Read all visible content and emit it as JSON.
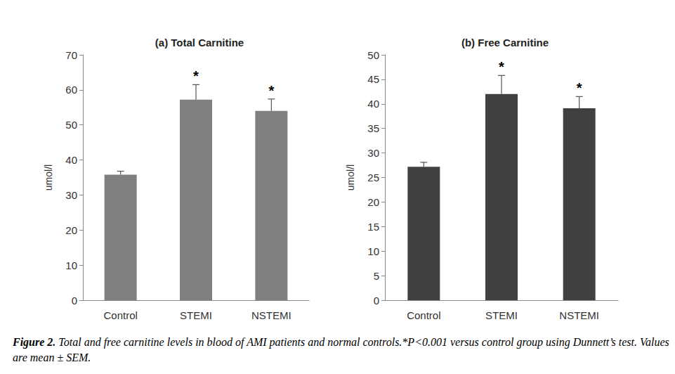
{
  "chart_data": [
    {
      "type": "bar",
      "title": "(a) Total Carnitine",
      "y_label": "umol/l",
      "categories": [
        "Control",
        "STEMI",
        "NSTEMI"
      ],
      "values": [
        35.8,
        57.2,
        54.0
      ],
      "errors": [
        1.0,
        4.3,
        3.4
      ],
      "color": "#7f7f7f",
      "annotations": [
        {
          "category": "STEMI",
          "text": "*"
        },
        {
          "category": "NSTEMI",
          "text": "*"
        }
      ],
      "ylim": [
        0,
        70
      ],
      "yticks": [
        0,
        10,
        20,
        30,
        40,
        50,
        60,
        70
      ],
      "grid": false
    },
    {
      "type": "bar",
      "title": "(b) Free Carnitine",
      "y_label": "umol/l",
      "categories": [
        "Control",
        "STEMI",
        "NSTEMI"
      ],
      "values": [
        27.2,
        42.0,
        39.1
      ],
      "errors": [
        0.9,
        3.8,
        2.4
      ],
      "color": "#404040",
      "annotations": [
        {
          "category": "STEMI",
          "text": "*"
        },
        {
          "category": "NSTEMI",
          "text": "*"
        }
      ],
      "ylim": [
        0,
        50
      ],
      "yticks": [
        0,
        5,
        10,
        15,
        20,
        25,
        30,
        35,
        40,
        45,
        50
      ],
      "grid": false
    }
  ],
  "caption": {
    "label": "Figure 2.",
    "text": "Total and free carnitine levels in blood of AMI patients and normal controls.*P<0.001 versus control group using Dunnett’s test. Values are mean ± SEM."
  }
}
